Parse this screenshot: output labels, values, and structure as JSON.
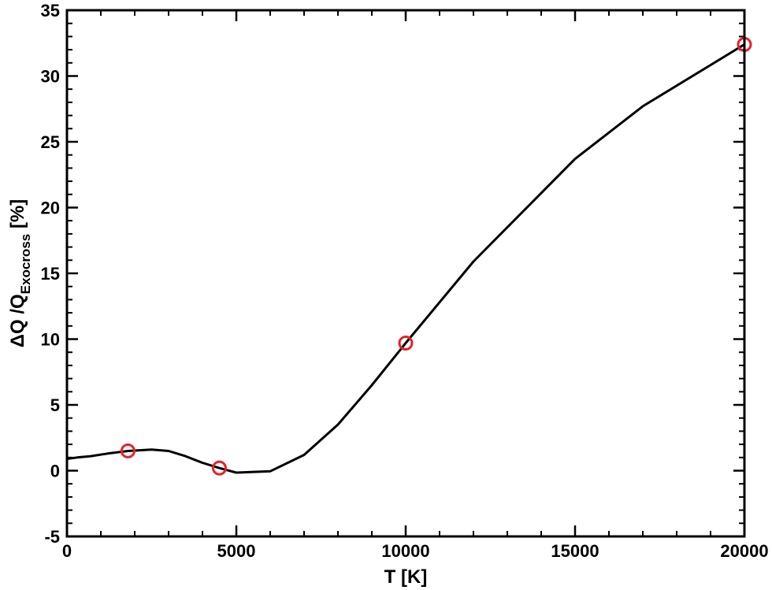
{
  "chart_data": {
    "type": "line",
    "xlabel": "T [K]",
    "ylabel": {
      "prefix": "ΔQ /Q",
      "subscript": "Exocross",
      "suffix": " [%]"
    },
    "xlim": [
      0,
      20000
    ],
    "ylim": [
      -5,
      35
    ],
    "x_ticks": [
      0,
      5000,
      10000,
      15000,
      20000
    ],
    "y_ticks": [
      -5,
      0,
      5,
      10,
      15,
      20,
      25,
      30,
      35
    ],
    "grid": false,
    "series": [
      {
        "style": "line",
        "color": "#000000",
        "x": [
          0,
          300,
          700,
          1200,
          1800,
          2500,
          3000,
          3500,
          4000,
          4500,
          5000,
          6000,
          7000,
          8000,
          9000,
          10000,
          12000,
          15000,
          17000,
          20000
        ],
        "y": [
          0.9,
          1.0,
          1.1,
          1.3,
          1.5,
          1.6,
          1.5,
          1.1,
          0.6,
          0.2,
          -0.15,
          -0.05,
          1.2,
          3.5,
          6.5,
          9.7,
          15.9,
          23.7,
          27.7,
          32.4
        ]
      },
      {
        "style": "markers",
        "marker": "open-circle",
        "color": "#e8202a",
        "x": [
          1800,
          4500,
          10000,
          20000
        ],
        "y": [
          1.5,
          0.2,
          9.7,
          32.4
        ]
      }
    ]
  }
}
